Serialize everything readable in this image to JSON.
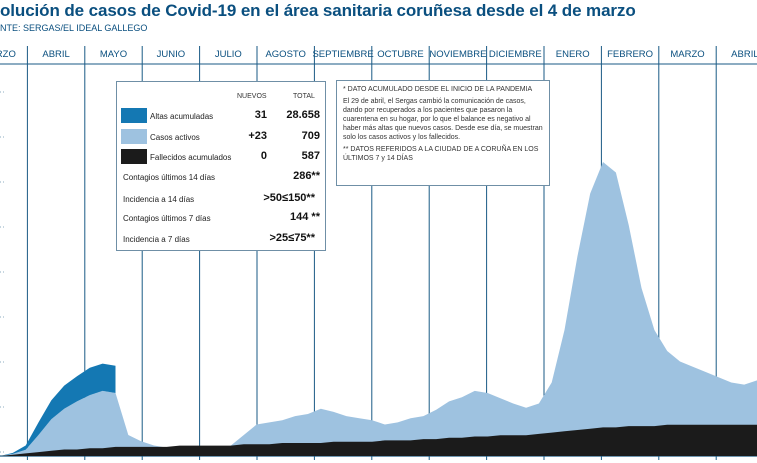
{
  "title": "olución de casos de Covid-19 en el área sanitaria coruñesa desde el 4 de marzo",
  "source": "NTE: SERGAS/EL IDEAL GALLEGO",
  "colors": {
    "altas": "#1478b3",
    "activos": "#9ec2e0",
    "fallecidos": "#1b1b1b",
    "accent": "#0a4f7f",
    "grid": "#1a5a85"
  },
  "legend": {
    "col_nuevos": "NUEVOS",
    "col_total": "TOTAL",
    "rows": [
      {
        "label": "Altas acumuladas",
        "nuevos": "31",
        "total": "28.658",
        "color": "#1478b3"
      },
      {
        "label": "Casos activos",
        "nuevos": "+23",
        "total": "709",
        "color": "#9ec2e0"
      },
      {
        "label": "Fallecidos acumulados",
        "nuevos": "0",
        "total": "587",
        "color": "#1b1b1b"
      }
    ],
    "stats": [
      {
        "label": "Contagios últimos 14 días",
        "value": "286**"
      },
      {
        "label": "Incidencia a 14 días",
        "value": ">50≤150**"
      },
      {
        "label": "Contagios últimos 7 días",
        "value": "144 **"
      },
      {
        "label": "Incidencia a 7 días",
        "value": ">25≤75**"
      }
    ]
  },
  "note": {
    "line1": "* DATO ACUMULADO DESDE EL INICIO DE LA PANDEMIA",
    "line2": "El 29 de abril, el Sergas cambió la comunicación de casos, dando por recuperados a los pacientes que pasaron la cuarentena en su hogar, por lo que el balance es negativo al haber más altas que nuevos casos. Desde ese día, se muestran solo los casos activos y los fallecidos.",
    "line3": "** DATOS REFERIDOS A LA CIUDAD DE A CORUÑA EN LOS ÚLTIMOS 7 y 14 DÍAS"
  },
  "chart_data": {
    "type": "area",
    "months": [
      "MARZO",
      "ABRIL",
      "MAYO",
      "JUNIO",
      "JULIO",
      "AGOSTO",
      "SEPTIEMBRE",
      "OCTUBRE",
      "NOVIEMBRE",
      "DICIEMBRE",
      "ENERO",
      "FEBRERO",
      "MARZO",
      "ABRIL"
    ],
    "series": [
      {
        "name": "Casos activos",
        "values": [
          0,
          2,
          6,
          20,
          35,
          45,
          52,
          58,
          62,
          60,
          20,
          14,
          10,
          8,
          6,
          5,
          5,
          6,
          10,
          20,
          30,
          32,
          34,
          38,
          40,
          45,
          42,
          38,
          36,
          34,
          30,
          32,
          36,
          38,
          44,
          52,
          56,
          62,
          60,
          55,
          50,
          46,
          50,
          70,
          120,
          190,
          250,
          280,
          270,
          220,
          160,
          120,
          100,
          90,
          85,
          80,
          75,
          70,
          68,
          72
        ]
      },
      {
        "name": "Altas acumuladas",
        "values": [
          0,
          1,
          4,
          12,
          18,
          22,
          24,
          26,
          26,
          26
        ]
      },
      {
        "name": "Fallecidos acumulados",
        "values": [
          0,
          1,
          2,
          3,
          4,
          5,
          5,
          6,
          6,
          7,
          7,
          7,
          7,
          7,
          8,
          8,
          8,
          8,
          8,
          9,
          9,
          9,
          10,
          10,
          10,
          10,
          11,
          11,
          11,
          11,
          12,
          12,
          12,
          13,
          13,
          14,
          14,
          15,
          15,
          16,
          16,
          16,
          17,
          18,
          19,
          20,
          21,
          22,
          22,
          23,
          23,
          23,
          24,
          24,
          24,
          24,
          24,
          24,
          24,
          24
        ]
      }
    ]
  }
}
